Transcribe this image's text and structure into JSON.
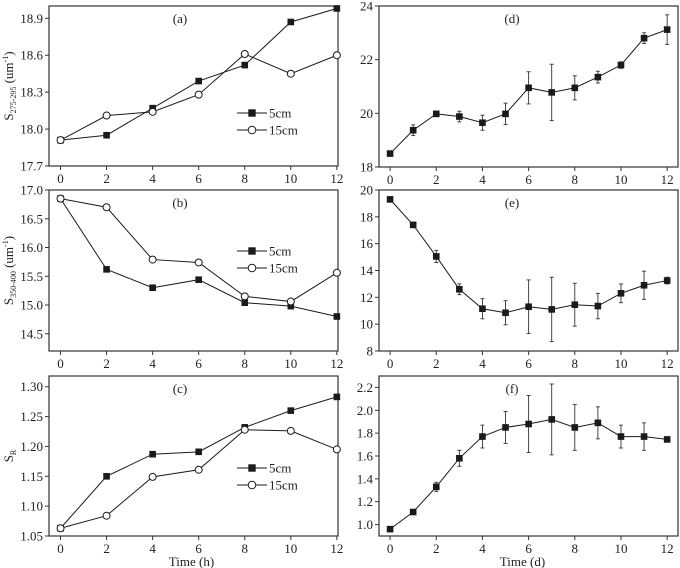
{
  "chart_data": [
    {
      "type": "line",
      "panel_label": "(a)",
      "ylabel": {
        "main": "S",
        "sub": "275-295",
        "unit": " (um",
        "sup": "-1",
        "close": ")"
      },
      "xlabel": "",
      "x": [
        0,
        2,
        4,
        6,
        8,
        10,
        12
      ],
      "xticks": [
        0,
        2,
        4,
        6,
        8,
        10,
        12
      ],
      "yticks": [
        "17.7",
        "18.0",
        "18.3",
        "18.6",
        "18.9"
      ],
      "xlim": [
        -0.5,
        12.05
      ],
      "ylim": [
        17.7,
        19.0
      ],
      "legend": "right-middle",
      "series": [
        {
          "name": "5cm",
          "marker": "filled-square",
          "values": [
            17.91,
            17.95,
            18.17,
            18.39,
            18.52,
            18.87,
            18.98
          ]
        },
        {
          "name": "15cm",
          "marker": "open-circle",
          "values": [
            17.91,
            18.11,
            18.14,
            18.28,
            18.61,
            18.45,
            18.6
          ]
        }
      ]
    },
    {
      "type": "line",
      "panel_label": "(b)",
      "ylabel": {
        "main": "S",
        "sub": "350-400",
        "unit": " (um",
        "sup": "-1",
        "close": ")"
      },
      "xlabel": "",
      "x": [
        0,
        2,
        4,
        6,
        8,
        10,
        12
      ],
      "xticks": [
        0,
        2,
        4,
        6,
        8,
        10,
        12
      ],
      "yticks": [
        "14.5",
        "15.0",
        "15.5",
        "16.0",
        "16.5",
        "17.0"
      ],
      "xlim": [
        -0.5,
        12.05
      ],
      "ylim": [
        14.2,
        17.0
      ],
      "legend": "right-middle",
      "series": [
        {
          "name": "5cm",
          "marker": "filled-square",
          "values": [
            16.85,
            15.62,
            15.3,
            15.44,
            15.04,
            14.98,
            14.8
          ]
        },
        {
          "name": "15cm",
          "marker": "open-circle",
          "values": [
            16.85,
            16.7,
            15.79,
            15.74,
            15.15,
            15.06,
            15.56
          ]
        }
      ]
    },
    {
      "type": "line",
      "panel_label": "(c)",
      "ylabel": {
        "main": "S",
        "sub": "R",
        "unit": "",
        "sup": "",
        "close": ""
      },
      "xlabel": "Time (h)",
      "x": [
        0,
        2,
        4,
        6,
        8,
        10,
        12
      ],
      "xticks": [
        0,
        2,
        4,
        6,
        8,
        10,
        12
      ],
      "yticks": [
        "1.05",
        "1.10",
        "1.15",
        "1.20",
        "1.25",
        "1.30"
      ],
      "xlim": [
        -0.5,
        12.05
      ],
      "ylim": [
        1.05,
        1.318
      ],
      "legend": "right-middle",
      "series": [
        {
          "name": "5cm",
          "marker": "filled-square",
          "values": [
            1.063,
            1.15,
            1.187,
            1.191,
            1.232,
            1.26,
            1.283
          ]
        },
        {
          "name": "15cm",
          "marker": "open-circle",
          "values": [
            1.063,
            1.084,
            1.149,
            1.161,
            1.228,
            1.226,
            1.195
          ]
        }
      ]
    },
    {
      "type": "line",
      "panel_label": "(d)",
      "xlabel": "",
      "x": [
        0,
        1,
        2,
        3,
        4,
        5,
        6,
        7,
        8,
        9,
        10,
        11,
        12
      ],
      "xticks": [
        0,
        2,
        4,
        6,
        8,
        10,
        12
      ],
      "yticks": [
        "18",
        "20",
        "22",
        "24"
      ],
      "xlim": [
        -0.48,
        12.47
      ],
      "ylim": [
        18,
        24
      ],
      "series": [
        {
          "marker": "filled-square",
          "values": [
            18.5,
            19.37,
            19.98,
            19.88,
            19.65,
            19.98,
            20.95,
            20.78,
            20.95,
            21.35,
            21.8,
            22.8,
            23.12
          ],
          "errors": [
            0,
            0.2,
            0.05,
            0.2,
            0.28,
            0.4,
            0.6,
            1.05,
            0.45,
            0.22,
            0.12,
            0.2,
            0.55
          ]
        }
      ]
    },
    {
      "type": "line",
      "panel_label": "(e)",
      "xlabel": "",
      "x": [
        0,
        1,
        2,
        3,
        4,
        5,
        6,
        7,
        8,
        9,
        10,
        11,
        12
      ],
      "xticks": [
        0,
        2,
        4,
        6,
        8,
        10,
        12
      ],
      "yticks": [
        "8",
        "10",
        "12",
        "14",
        "16",
        "18",
        "20"
      ],
      "xlim": [
        -0.48,
        12.47
      ],
      "ylim": [
        8,
        20
      ],
      "series": [
        {
          "marker": "filled-square",
          "values": [
            19.3,
            17.4,
            15.05,
            12.6,
            11.15,
            10.85,
            11.3,
            11.1,
            11.45,
            11.35,
            12.3,
            12.9,
            13.25
          ],
          "errors": [
            0,
            0.15,
            0.45,
            0.4,
            0.75,
            0.9,
            2.0,
            2.4,
            1.6,
            0.95,
            0.7,
            1.05,
            0.25
          ]
        }
      ]
    },
    {
      "type": "line",
      "panel_label": "(f)",
      "xlabel": "Time (d)",
      "x": [
        0,
        1,
        2,
        3,
        4,
        5,
        6,
        7,
        8,
        9,
        10,
        11,
        12
      ],
      "xticks": [
        0,
        2,
        4,
        6,
        8,
        10,
        12
      ],
      "yticks": [
        "1.0",
        "1.2",
        "1.4",
        "1.6",
        "1.8",
        "2.0",
        "2.2"
      ],
      "xlim": [
        -0.48,
        12.47
      ],
      "ylim": [
        0.9,
        2.3
      ],
      "series": [
        {
          "marker": "filled-square",
          "values": [
            0.96,
            1.11,
            1.33,
            1.58,
            1.77,
            1.85,
            1.88,
            1.92,
            1.85,
            1.89,
            1.77,
            1.77,
            1.745
          ],
          "errors": [
            0,
            0.01,
            0.04,
            0.07,
            0.1,
            0.14,
            0.25,
            0.31,
            0.2,
            0.14,
            0.1,
            0.12,
            0.02
          ]
        }
      ]
    }
  ]
}
